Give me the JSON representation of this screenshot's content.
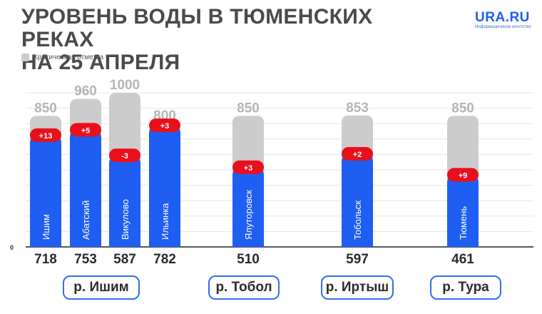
{
  "title_line1": "УРОВЕНЬ ВОДЫ В ТЮМЕНСКИХ РЕКАХ",
  "title_line2": "НА 25 АПРЕЛЯ",
  "logo": {
    "brand": "URA.RU",
    "tagline": "Информационное агентство"
  },
  "colors": {
    "current": "#1f5ef2",
    "critical": "#cccccc",
    "change": "#e8101b",
    "pill_border": "#2f6ff0"
  },
  "chart_data": {
    "type": "bar",
    "legend": "Критическая отметка",
    "zero_label": "0",
    "ylim": [
      0,
      1000
    ],
    "categories": [
      "Ишим",
      "Абатский",
      "Викулово",
      "Ильинка",
      "Ялуторовск",
      "Тобольск",
      "Тюмень"
    ],
    "series": [
      {
        "name": "Критическая отметка",
        "values": [
          850,
          960,
          1000,
          800,
          850,
          853,
          850
        ]
      },
      {
        "values": [
          718,
          753,
          587,
          782,
          510,
          597,
          461
        ]
      }
    ],
    "changes": [
      "+13",
      "+5",
      "-3",
      "+3",
      "+3",
      "+2",
      "+9"
    ],
    "rivers": [
      {
        "label": "р. Ишим",
        "stations": [
          0,
          1,
          2,
          3
        ]
      },
      {
        "label": "р. Тобол",
        "stations": [
          4
        ]
      },
      {
        "label": "р. Иртыш",
        "stations": [
          5
        ]
      },
      {
        "label": "р. Тура",
        "stations": [
          6
        ]
      }
    ]
  }
}
